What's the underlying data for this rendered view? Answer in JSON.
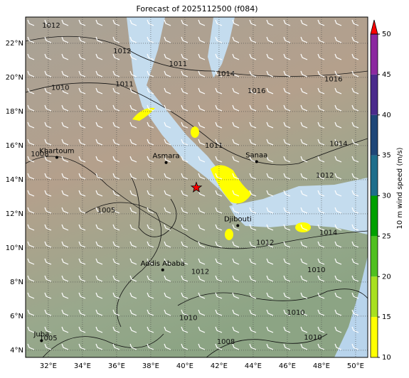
{
  "title": "Forecast of 2025112500 (f084)",
  "map": {
    "lon_range": [
      30.67,
      50.71
    ],
    "lat_range": [
      3.58,
      23.54
    ],
    "lon_ticks": [
      {
        "value": 32,
        "label": "32°E"
      },
      {
        "value": 34,
        "label": "34°E"
      },
      {
        "value": 36,
        "label": "36°E"
      },
      {
        "value": 38,
        "label": "38°E"
      },
      {
        "value": 40,
        "label": "40°E"
      },
      {
        "value": 42,
        "label": "42°E"
      },
      {
        "value": 44,
        "label": "44°E"
      },
      {
        "value": 46,
        "label": "46°E"
      },
      {
        "value": 48,
        "label": "48°E"
      },
      {
        "value": 50,
        "label": "50°E"
      }
    ],
    "lat_ticks": [
      {
        "value": 4,
        "label": "4°N"
      },
      {
        "value": 6,
        "label": "6°N"
      },
      {
        "value": 8,
        "label": "8°N"
      },
      {
        "value": 10,
        "label": "10°N"
      },
      {
        "value": 12,
        "label": "12°N"
      },
      {
        "value": 14,
        "label": "14°N"
      },
      {
        "value": 16,
        "label": "16°N"
      },
      {
        "value": 18,
        "label": "18°N"
      },
      {
        "value": 20,
        "label": "20°N"
      },
      {
        "value": 22,
        "label": "22°N"
      }
    ],
    "cities": [
      {
        "name": "Khartoum",
        "lon": 32.5,
        "lat": 15.6
      },
      {
        "name": "Asmara",
        "lon": 38.9,
        "lat": 15.3
      },
      {
        "name": "Sanaa",
        "lon": 44.2,
        "lat": 15.35
      },
      {
        "name": "Djibouti",
        "lon": 43.1,
        "lat": 11.6
      },
      {
        "name": "Addis Ababa",
        "lon": 38.7,
        "lat": 9.0
      },
      {
        "name": "Juba",
        "lon": 31.6,
        "lat": 4.85
      }
    ],
    "star": {
      "lon": 40.67,
      "lat": 13.54,
      "color": "#ff0000"
    },
    "contour_labels": [
      {
        "value": 1012,
        "lon": 32.17,
        "lat": 23.04
      },
      {
        "value": 1012,
        "lon": 36.33,
        "lat": 21.54
      },
      {
        "value": 1010,
        "lon": 32.7,
        "lat": 19.4
      },
      {
        "value": 1011,
        "lon": 36.46,
        "lat": 19.6
      },
      {
        "value": 1011,
        "lon": 39.6,
        "lat": 20.8
      },
      {
        "value": 1014,
        "lon": 42.4,
        "lat": 20.2
      },
      {
        "value": 1016,
        "lon": 44.2,
        "lat": 19.2
      },
      {
        "value": 1016,
        "lon": 48.7,
        "lat": 19.9
      },
      {
        "value": 1011,
        "lon": 41.7,
        "lat": 16.0
      },
      {
        "value": 1014,
        "lon": 49.0,
        "lat": 16.1
      },
      {
        "value": 1012,
        "lon": 48.2,
        "lat": 14.25
      },
      {
        "value": 1012,
        "lon": 44.7,
        "lat": 10.3
      },
      {
        "value": 1014,
        "lon": 48.4,
        "lat": 10.9
      },
      {
        "value": 1010,
        "lon": 47.7,
        "lat": 8.7
      },
      {
        "value": 1012,
        "lon": 40.9,
        "lat": 8.6
      },
      {
        "value": 1005,
        "lon": 35.4,
        "lat": 12.2
      },
      {
        "value": 1010,
        "lon": 40.2,
        "lat": 5.9
      },
      {
        "value": 1010,
        "lon": 46.5,
        "lat": 6.2
      },
      {
        "value": 1010,
        "lon": 47.5,
        "lat": 4.75
      },
      {
        "value": 1008,
        "lon": 42.4,
        "lat": 4.5
      },
      {
        "value": 1008,
        "lon": 31.5,
        "lat": 15.5
      },
      {
        "value": 1005,
        "lon": 32.0,
        "lat": 4.7
      }
    ]
  },
  "colorbar": {
    "label": "10 m wind speed (m/s)",
    "range": [
      10,
      50
    ],
    "ticks": [
      10,
      15,
      20,
      25,
      30,
      35,
      40,
      45,
      50
    ],
    "colors": [
      "#ffff00",
      "#a8e020",
      "#50c020",
      "#00a000",
      "#1e6e8c",
      "#1e4678",
      "#4a2a8c",
      "#8c28a0"
    ],
    "extend_color": "#ff0000"
  }
}
